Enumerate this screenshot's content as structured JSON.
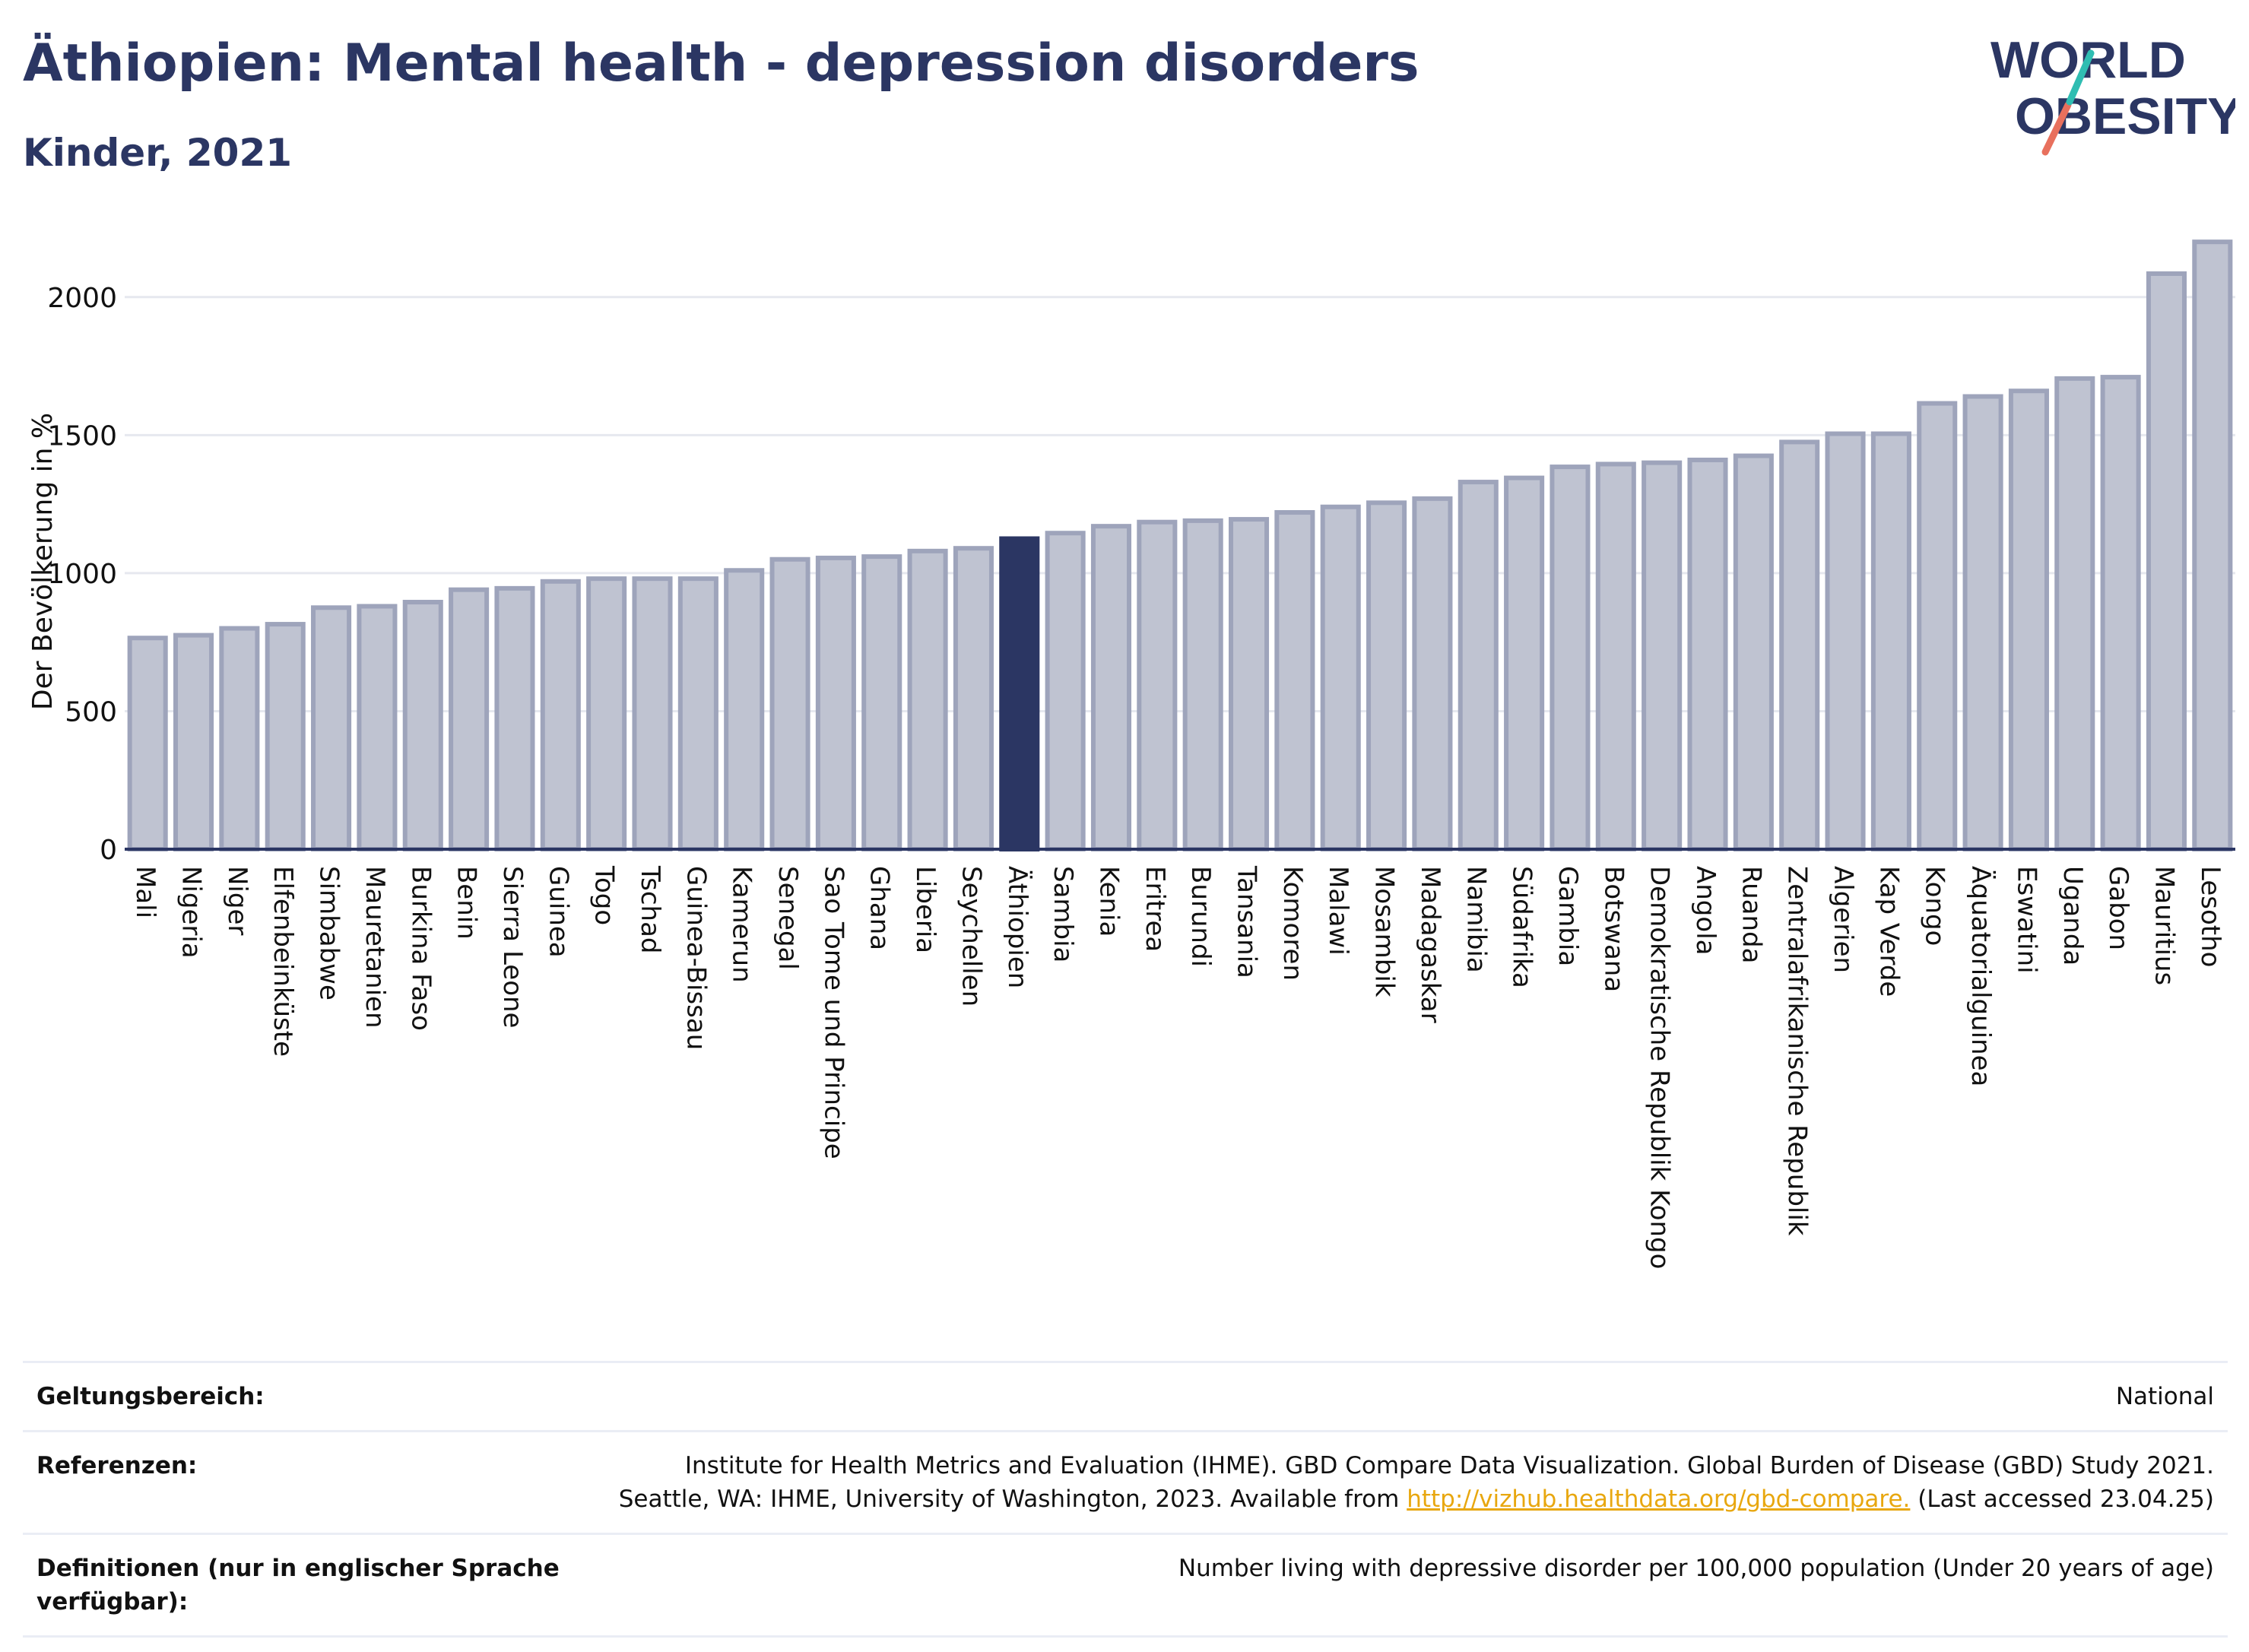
{
  "header": {
    "title": "Äthiopien: Mental health - depression disorders",
    "subtitle": "Kinder, 2021"
  },
  "logo": {
    "line1": "WORLD",
    "line2": "OBESITY"
  },
  "chart_data": {
    "type": "bar",
    "ylabel": "Der Bevölkerung in %",
    "xlabel": "",
    "ylim": [
      0,
      2250
    ],
    "yticks": [
      0,
      500,
      1000,
      1500,
      2000
    ],
    "grid": true,
    "highlight": "Äthiopien",
    "colors": {
      "bar": "#bfc3d1",
      "bar_edge": "#9ea4bb",
      "highlight": "#2b3663"
    },
    "categories": [
      "Mali",
      "Nigeria",
      "Niger",
      "Elfenbeinküste",
      "Simbabwe",
      "Mauretanien",
      "Burkina Faso",
      "Benin",
      "Sierra Leone",
      "Guinea",
      "Togo",
      "Tschad",
      "Guinea-Bissau",
      "Kamerun",
      "Senegal",
      "Sao Tome und Principe",
      "Ghana",
      "Liberia",
      "Seychellen",
      "Äthiopien",
      "Sambia",
      "Kenia",
      "Eritrea",
      "Burundi",
      "Tansania",
      "Komoren",
      "Malawi",
      "Mosambik",
      "Madagaskar",
      "Namibia",
      "Südafrika",
      "Gambia",
      "Botswana",
      "Demokratische Republik Kongo",
      "Angola",
      "Ruanda",
      "Zentralafrikanische Republik",
      "Algerien",
      "Kap Verde",
      "Kongo",
      "Äquatorialguinea",
      "Eswatini",
      "Uganda",
      "Gabon",
      "Mauritius",
      "Lesotho"
    ],
    "values": [
      765,
      775,
      800,
      815,
      875,
      880,
      895,
      940,
      945,
      970,
      980,
      980,
      980,
      1010,
      1050,
      1055,
      1060,
      1080,
      1090,
      1125,
      1145,
      1170,
      1185,
      1190,
      1195,
      1220,
      1240,
      1255,
      1270,
      1330,
      1345,
      1385,
      1395,
      1400,
      1410,
      1425,
      1475,
      1505,
      1505,
      1615,
      1640,
      1660,
      1705,
      1710,
      2085,
      2200
    ]
  },
  "info": {
    "scope_label": "Geltungsbereich:",
    "scope_value": "National",
    "refs_label": "Referenzen:",
    "refs_line1": "Institute for Health Metrics and Evaluation (IHME). GBD Compare Data Visualization. Global Burden of Disease (GBD) Study 2021.",
    "refs_line2_prefix": "Seattle, WA: IHME, University of Washington, 2023. Available from ",
    "refs_link": "http://vizhub.healthdata.org/gbd-compare.",
    "refs_line2_suffix": " (Last accessed 23.04.25)",
    "defs_label": "Definitionen (nur in englischer Sprache verfügbar):",
    "defs_value": "Number living with depressive disorder per 100,000 population (Under 20 years of age)"
  }
}
